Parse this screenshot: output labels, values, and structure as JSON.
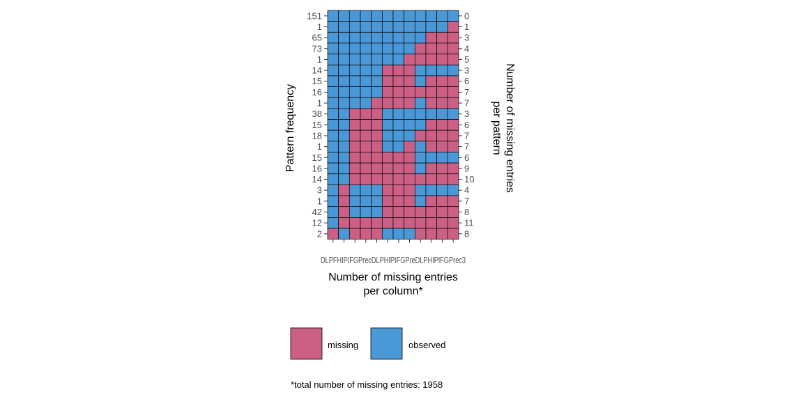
{
  "chart_data": {
    "type": "heatmap",
    "colors": {
      "missing": "#cc5f86",
      "observed": "#4b98d6"
    },
    "columns": [
      "DLPFC1",
      "HIPP1",
      "IFG1",
      "Prec1",
      "DLPFC2",
      "HIPP2",
      "IFG2",
      "Prec2",
      "DLPFC3",
      "HIPP3",
      "IFG3",
      "Prec3"
    ],
    "column_tick_label_text": "DLPFHIPIFGPrecDLPHIPIFGPreDLPHIPIFGPrec3",
    "pattern_frequency": [
      "151",
      "1",
      "65",
      "73",
      "1",
      "14",
      "15",
      "16",
      "1",
      "38",
      "15",
      "18",
      "1",
      "15",
      "16",
      "14",
      "3",
      "1",
      "42",
      "12",
      "2"
    ],
    "missing_per_pattern": [
      "0",
      "1",
      "3",
      "4",
      "5",
      "3",
      "6",
      "7",
      "7",
      "3",
      "6",
      "7",
      "7",
      "6",
      "9",
      "10",
      "4",
      "7",
      "8",
      "11",
      "8"
    ],
    "patterns": [
      [
        0,
        0,
        0,
        0,
        0,
        0,
        0,
        0,
        0,
        0,
        0,
        0
      ],
      [
        0,
        0,
        0,
        0,
        0,
        0,
        0,
        0,
        0,
        0,
        0,
        1
      ],
      [
        0,
        0,
        0,
        0,
        0,
        0,
        0,
        0,
        0,
        1,
        1,
        1
      ],
      [
        0,
        0,
        0,
        0,
        0,
        0,
        0,
        0,
        1,
        1,
        1,
        1
      ],
      [
        0,
        0,
        0,
        0,
        0,
        0,
        0,
        1,
        1,
        1,
        1,
        1
      ],
      [
        0,
        0,
        0,
        0,
        0,
        1,
        1,
        1,
        0,
        0,
        0,
        0
      ],
      [
        0,
        0,
        0,
        0,
        0,
        1,
        1,
        1,
        0,
        1,
        1,
        1
      ],
      [
        0,
        0,
        0,
        0,
        0,
        1,
        1,
        1,
        1,
        1,
        1,
        1
      ],
      [
        0,
        0,
        0,
        0,
        1,
        1,
        1,
        1,
        0,
        1,
        1,
        1
      ],
      [
        0,
        0,
        1,
        1,
        1,
        0,
        0,
        0,
        0,
        0,
        0,
        0
      ],
      [
        0,
        0,
        1,
        1,
        1,
        0,
        0,
        0,
        0,
        1,
        1,
        1
      ],
      [
        0,
        0,
        1,
        1,
        1,
        0,
        0,
        0,
        1,
        1,
        1,
        1
      ],
      [
        0,
        0,
        1,
        1,
        1,
        0,
        0,
        1,
        0,
        1,
        1,
        1
      ],
      [
        0,
        0,
        1,
        1,
        1,
        1,
        1,
        1,
        0,
        0,
        0,
        0
      ],
      [
        0,
        0,
        1,
        1,
        1,
        1,
        1,
        1,
        0,
        1,
        1,
        1
      ],
      [
        0,
        0,
        1,
        1,
        1,
        1,
        1,
        1,
        1,
        1,
        1,
        1
      ],
      [
        0,
        1,
        0,
        0,
        0,
        1,
        1,
        1,
        0,
        0,
        0,
        0
      ],
      [
        0,
        1,
        0,
        0,
        0,
        1,
        1,
        1,
        0,
        1,
        1,
        1
      ],
      [
        0,
        1,
        0,
        0,
        0,
        1,
        1,
        1,
        1,
        1,
        1,
        1
      ],
      [
        0,
        1,
        1,
        1,
        1,
        1,
        1,
        1,
        1,
        1,
        1,
        1
      ],
      [
        1,
        0,
        1,
        1,
        1,
        0,
        0,
        0,
        1,
        1,
        1,
        1
      ]
    ],
    "ylabel_left": "Pattern frequency",
    "ylabel_right": [
      "Number of missing entries",
      "per pattern"
    ],
    "xlabel": [
      "Number of missing entries",
      "per column*"
    ],
    "legend": [
      {
        "key": "missing",
        "label": "missing"
      },
      {
        "key": "observed",
        "label": "observed"
      }
    ],
    "footnote": "*total number of missing entries: 1958"
  }
}
